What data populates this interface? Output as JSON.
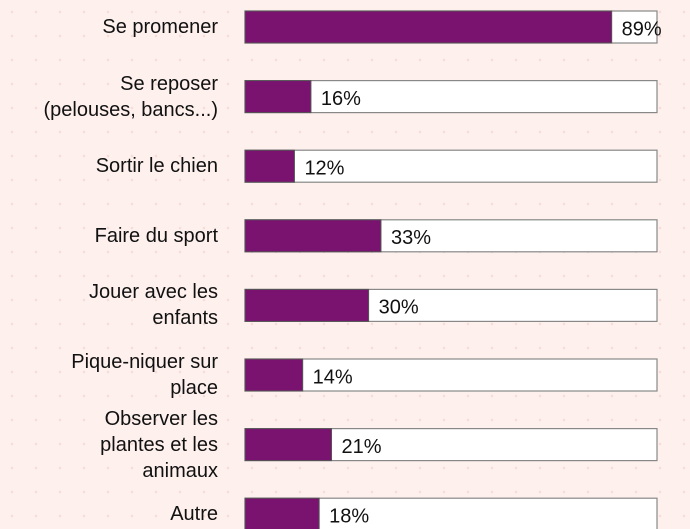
{
  "chart_data": {
    "type": "bar",
    "orientation": "horizontal",
    "categories": [
      "Se promener",
      "Se reposer\n(pelouses, bancs...)",
      "Sortir le chien",
      "Faire du sport",
      "Jouer avec les\nenfants",
      "Pique-niquer sur\nplace",
      "Observer les\nplantes et les\nanimaux",
      "Autre"
    ],
    "values": [
      89,
      16,
      12,
      33,
      30,
      14,
      21,
      18
    ],
    "value_labels": [
      "89%",
      "16%",
      "12%",
      "33%",
      "30%",
      "14%",
      "21%",
      "18%"
    ],
    "color": "#7a1270",
    "xlim": [
      0,
      100
    ]
  }
}
